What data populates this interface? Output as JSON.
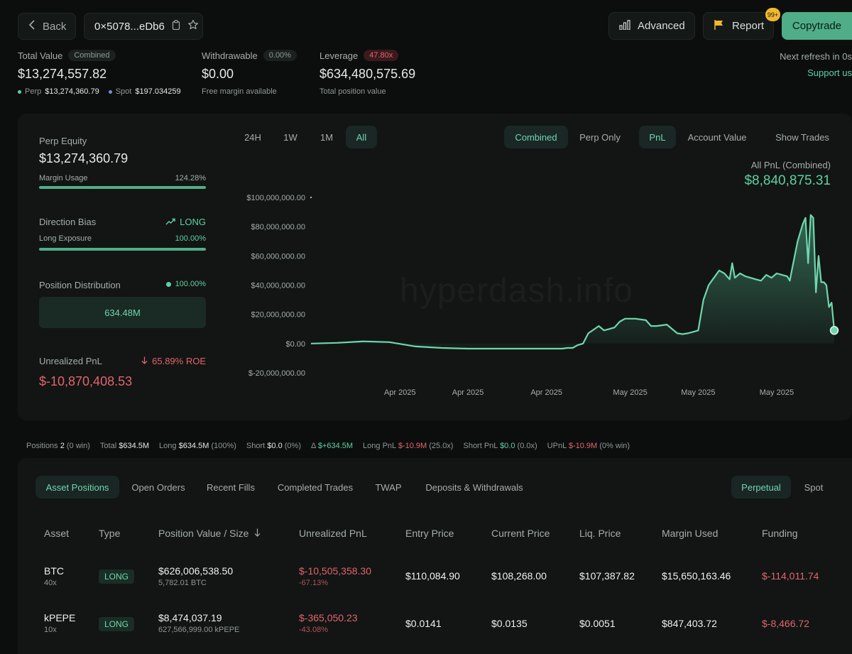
{
  "header": {
    "back_label": "Back",
    "address": "0×5078...eDb6",
    "advanced_label": "Advanced",
    "report_label": "Report",
    "report_badge": "99+",
    "copytrade_label": "Copytrade",
    "next_refresh": "Next refresh in 0s",
    "support": "Support us"
  },
  "summary": {
    "total_value_label": "Total Value",
    "total_value_tag": "Combined",
    "total_value": "$13,274,557.82",
    "perp_label": "Perp",
    "perp_value": "$13,274,360.79",
    "spot_label": "Spot",
    "spot_value": "$197.034259",
    "withdrawable_label": "Withdrawable",
    "withdrawable_tag": "0.00%",
    "withdrawable_value": "$0.00",
    "withdrawable_sub": "Free margin available",
    "leverage_label": "Leverage",
    "leverage_tag": "47.80x",
    "leverage_value": "$634,480,575.69",
    "leverage_sub": "Total position value"
  },
  "left_panel": {
    "perp_equity_label": "Perp Equity",
    "perp_equity": "$13,274,360.79",
    "margin_usage_label": "Margin Usage",
    "margin_usage_value": "124.28%",
    "margin_usage_fill": 1.0,
    "direction_bias_label": "Direction Bias",
    "direction_bias_value": "LONG",
    "long_exposure_label": "Long Exposure",
    "long_exposure_value": "100.00%",
    "long_exposure_fill": 1.0,
    "position_dist_label": "Position Distribution",
    "position_dist_value": "100.00%",
    "position_dist_amount": "634.48M",
    "unrealized_pnl_label": "Unrealized PnL",
    "roe": "65.89% ROE",
    "unrealized_pnl": "$-10,870,408.53"
  },
  "chart_controls": {
    "ranges": [
      "24H",
      "1W",
      "1M",
      "All"
    ],
    "active_range": "All",
    "mode_options": [
      "Combined",
      "Perp Only"
    ],
    "metric_options": [
      "PnL",
      "Account Value"
    ],
    "show_trades": "Show Trades",
    "pnl_title": "All PnL (Combined)",
    "pnl_value": "$8,840,875.31",
    "watermark": "hyperdash.info"
  },
  "chart_data": {
    "type": "area",
    "title": "All PnL (Combined)",
    "xlabel": "",
    "ylabel": "",
    "ylim": [
      -20000000,
      100000000
    ],
    "yticks": [
      100000000,
      80000000,
      60000000,
      40000000,
      20000000,
      0,
      -20000000
    ],
    "ytick_labels": [
      "$100,000,000.00",
      "$80,000,000.00",
      "$60,000,000.00",
      "$40,000,000.00",
      "$20,000,000.00",
      "$0.00",
      "$-20,000,000.00"
    ],
    "xtick_labels": [
      "Apr 2025",
      "Apr 2025",
      "Apr 2025",
      "May 2025",
      "May 2025",
      "May 2025"
    ],
    "xtick_positions": [
      0.17,
      0.3,
      0.45,
      0.61,
      0.74,
      0.89
    ],
    "x": [
      0,
      0.05,
      0.1,
      0.15,
      0.2,
      0.25,
      0.3,
      0.35,
      0.4,
      0.42,
      0.44,
      0.46,
      0.48,
      0.49,
      0.5,
      0.51,
      0.52,
      0.53,
      0.55,
      0.56,
      0.57,
      0.58,
      0.59,
      0.6,
      0.62,
      0.64,
      0.65,
      0.66,
      0.68,
      0.7,
      0.71,
      0.72,
      0.73,
      0.74,
      0.75,
      0.76,
      0.77,
      0.78,
      0.79,
      0.8,
      0.805,
      0.81,
      0.82,
      0.83,
      0.84,
      0.85,
      0.86,
      0.87,
      0.88,
      0.89,
      0.9,
      0.91,
      0.915,
      0.92,
      0.93,
      0.935,
      0.94,
      0.945,
      0.95,
      0.955,
      0.96,
      0.965,
      0.97,
      0.975,
      0.98,
      0.985,
      0.99,
      0.995,
      1.0
    ],
    "values": [
      0,
      500000,
      1500000,
      1000000,
      -2000000,
      -3000000,
      -3500000,
      -3500000,
      -3500000,
      -3500000,
      -3500000,
      -3500000,
      -3500000,
      -3000000,
      -3000000,
      -1000000,
      0,
      7000000,
      12000000,
      9000000,
      10000000,
      11000000,
      15000000,
      17000000,
      17000000,
      16000000,
      12000000,
      12000000,
      13000000,
      7000000,
      6500000,
      7000000,
      8000000,
      9000000,
      30000000,
      40000000,
      45000000,
      50000000,
      48000000,
      44000000,
      55000000,
      45000000,
      48000000,
      46000000,
      45000000,
      44000000,
      43000000,
      47000000,
      45000000,
      48000000,
      47000000,
      46000000,
      43000000,
      52000000,
      70000000,
      76000000,
      82000000,
      86000000,
      55000000,
      88000000,
      86000000,
      35000000,
      60000000,
      42000000,
      42000000,
      40000000,
      25000000,
      28000000,
      9000000
    ]
  },
  "stats_bar": {
    "positions_label": "Positions",
    "positions_value": "2",
    "positions_win": "(0 win)",
    "total_label": "Total",
    "total_value": "$634.5M",
    "long_label": "Long",
    "long_value": "$634.5M",
    "long_pct": "(100%)",
    "short_label": "Short",
    "short_value": "$0.0",
    "short_pct": "(0%)",
    "delta_label": "Δ",
    "delta_value": "$+634.5M",
    "long_pnl_label": "Long PnL",
    "long_pnl_value": "$-10.9M",
    "long_pnl_lev": "(25.0x)",
    "short_pnl_label": "Short PnL",
    "short_pnl_value": "$0.0",
    "short_pnl_lev": "(0.0x)",
    "upnl_label": "UPnL",
    "upnl_value": "$-10.9M",
    "upnl_win": "(0% win)"
  },
  "tabs": {
    "items": [
      "Asset Positions",
      "Open Orders",
      "Recent Fills",
      "Completed Trades",
      "TWAP",
      "Deposits & Withdrawals"
    ],
    "active": "Asset Positions",
    "market_options": [
      "Perpetual",
      "Spot"
    ]
  },
  "table": {
    "headers": [
      "Asset",
      "Type",
      "Position Value / Size",
      "Unrealized PnL",
      "Entry Price",
      "Current Price",
      "Liq. Price",
      "Margin Used",
      "Funding"
    ],
    "rows": [
      {
        "asset": "BTC",
        "leverage": "40x",
        "type": "LONG",
        "position_value": "$626,006,538.50",
        "size": "5,782.01 BTC",
        "upnl": "$-10,505,358.30",
        "upnl_pct": "-67.13%",
        "entry": "$110,084.90",
        "current": "$108,268.00",
        "liq": "$107,387.82",
        "margin": "$15,650,163.46",
        "funding": "$-114,011.74"
      },
      {
        "asset": "kPEPE",
        "leverage": "10x",
        "type": "LONG",
        "position_value": "$8,474,037.19",
        "size": "627,566,999.00 kPEPE",
        "upnl": "$-365,050.23",
        "upnl_pct": "-43.08%",
        "entry": "$0.0141",
        "current": "$0.0135",
        "liq": "$0.0051",
        "margin": "$847,403.72",
        "funding": "$-8,466.72"
      }
    ]
  }
}
